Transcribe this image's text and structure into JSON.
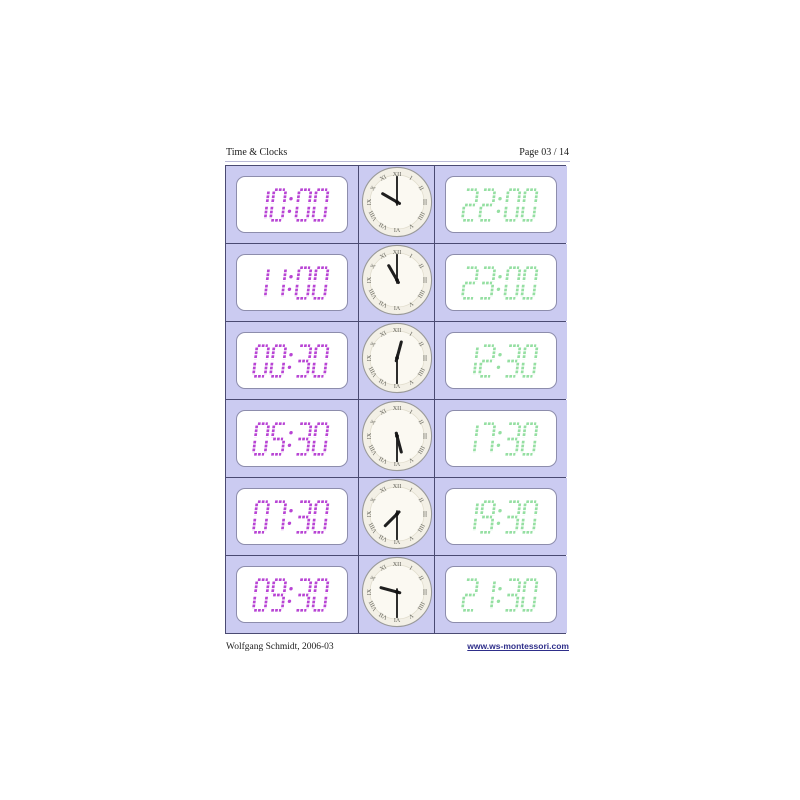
{
  "header": {
    "title": "Time & Clocks",
    "page_number": "Page 03 / 14"
  },
  "footer": {
    "author": "Wolfgang Schmidt, 2006-03",
    "website": "www.ws-montessori.com"
  },
  "grid": {
    "rows": [
      {
        "digital_12h": "10:00",
        "analog_time": "10:00",
        "digital_24h": "22:00"
      },
      {
        "digital_12h": "11:00",
        "analog_time": "11:00",
        "digital_24h": "23:00"
      },
      {
        "digital_12h": "00:30",
        "analog_time": "00:30",
        "digital_24h": "12:30"
      },
      {
        "digital_12h": "05:30",
        "analog_time": "05:30",
        "digital_24h": "17:30"
      },
      {
        "digital_12h": "07:30",
        "analog_time": "07:30",
        "digital_24h": "19:30"
      },
      {
        "digital_12h": "09:30",
        "analog_time": "09:30",
        "digital_24h": "21:30"
      }
    ]
  },
  "clock_face": {
    "numerals": [
      "XII",
      "I",
      "II",
      "III",
      "IIII",
      "V",
      "VI",
      "VII",
      "VIII",
      "IX",
      "X",
      "XI"
    ]
  },
  "colors": {
    "cell_background": "#cbcbf1",
    "grid_border": "#4a4a72",
    "display_background": "#ffffff",
    "display_border": "#8d8dac",
    "digital_12h": "#b844d4",
    "digital_24h": "#95dfa2",
    "clock_face_fill": "#f3f0e6",
    "clock_inner_fill": "#fbf9f2",
    "clock_hand": "#1f1f1f",
    "link": "#2e2e8a"
  }
}
